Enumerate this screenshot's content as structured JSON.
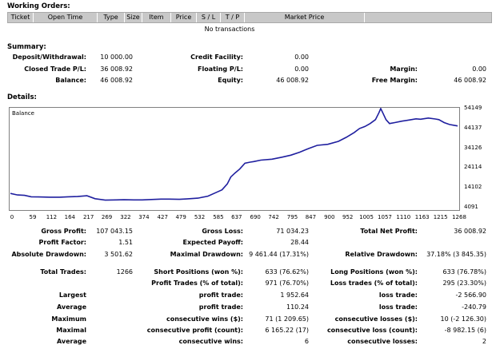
{
  "working_orders": {
    "title": "Working Orders:",
    "columns": [
      "Ticket",
      "Open Time",
      "Type",
      "Size",
      "Item",
      "Price",
      "S / L",
      "T / P",
      "Market Price"
    ],
    "empty_message": "No transactions"
  },
  "summary": {
    "title": "Summary:",
    "deposit_withdrawal_label": "Deposit/Withdrawal:",
    "deposit_withdrawal_value": "10 000.00",
    "credit_facility_label": "Credit Facility:",
    "credit_facility_value": "0.00",
    "closed_trade_pl_label": "Closed Trade P/L:",
    "closed_trade_pl_value": "36 008.92",
    "floating_pl_label": "Floating P/L:",
    "floating_pl_value": "0.00",
    "margin_label": "Margin:",
    "margin_value": "0.00",
    "balance_label": "Balance:",
    "balance_value": "46 008.92",
    "equity_label": "Equity:",
    "equity_value": "46 008.92",
    "free_margin_label": "Free Margin:",
    "free_margin_value": "46 008.92"
  },
  "details": {
    "title": "Details:",
    "gross_profit_label": "Gross Profit:",
    "gross_profit_value": "107 043.15",
    "gross_loss_label": "Gross Loss:",
    "gross_loss_value": "71 034.23",
    "total_net_profit_label": "Total Net Profit:",
    "total_net_profit_value": "36 008.92",
    "profit_factor_label": "Profit Factor:",
    "profit_factor_value": "1.51",
    "expected_payoff_label": "Expected Payoff:",
    "expected_payoff_value": "28.44",
    "absolute_drawdown_label": "Absolute Drawdown:",
    "absolute_drawdown_value": "3 501.62",
    "maximal_drawdown_label": "Maximal Drawdown:",
    "maximal_drawdown_value": "9 461.44 (17.31%)",
    "relative_drawdown_label": "Relative Drawdown:",
    "relative_drawdown_value": "37.18% (3 845.35)",
    "total_trades_label": "Total Trades:",
    "total_trades_value": "1266",
    "short_positions_label": "Short Positions (won %):",
    "short_positions_value": "633 (76.62%)",
    "long_positions_label": "Long Positions (won %):",
    "long_positions_value": "633 (76.78%)",
    "profit_trades_label": "Profit Trades (% of total):",
    "profit_trades_value": "971 (76.70%)",
    "loss_trades_label": "Loss trades (% of total):",
    "loss_trades_value": "295 (23.30%)",
    "largest_label": "Largest",
    "largest_profit_label": "profit trade:",
    "largest_profit_value": "1 952.64",
    "largest_loss_label": "loss trade:",
    "largest_loss_value": "-2 566.90",
    "average_label": "Average",
    "average_profit_label": "profit trade:",
    "average_profit_value": "110.24",
    "average_loss_label": "loss trade:",
    "average_loss_value": "-240.79",
    "maximum_label": "Maximum",
    "max_cons_wins_label": "consecutive wins ($):",
    "max_cons_wins_value": "71 (1 209.65)",
    "max_cons_losses_label": "consecutive losses ($):",
    "max_cons_losses_value": "10 (-2 126.30)",
    "maximal_label": "Maximal",
    "maximal_cons_profit_label": "consecutive profit (count):",
    "maximal_cons_profit_value": "6 165.22 (17)",
    "maximal_cons_loss_label": "consecutive loss (count):",
    "maximal_cons_loss_value": "-8 982.15 (6)",
    "average2_label": "Average",
    "avg_cons_wins_label": "consecutive wins:",
    "avg_cons_wins_value": "6",
    "avg_cons_losses_label": "consecutive losses:",
    "avg_cons_losses_value": "2"
  },
  "chart_data": {
    "type": "line",
    "title": "Balance",
    "line_color": "#1f1f9f",
    "x_ticks": [
      "0",
      "59",
      "112",
      "164",
      "217",
      "269",
      "322",
      "374",
      "427",
      "479",
      "532",
      "585",
      "637",
      "690",
      "742",
      "795",
      "847",
      "900",
      "952",
      "1005",
      "1057",
      "1110",
      "1163",
      "1215",
      "1268"
    ],
    "y_ticks": [
      "54149",
      "44137",
      "34126",
      "24114",
      "14102",
      "4091"
    ],
    "xlim": [
      0,
      1268
    ],
    "ylim": [
      4091,
      54149
    ],
    "grid": false,
    "series": [
      {
        "x": [
          0,
          20,
          40,
          59,
          80,
          112,
          140,
          164,
          190,
          217,
          240,
          269,
          300,
          322,
          350,
          374,
          400,
          427,
          450,
          479,
          500,
          532,
          560,
          585,
          600,
          615,
          625,
          637,
          650,
          665,
          680,
          690,
          710,
          742,
          770,
          795,
          820,
          847,
          870,
          900,
          930,
          952,
          975,
          990,
          1005,
          1020,
          1035,
          1045,
          1050,
          1057,
          1065,
          1075,
          1090,
          1110,
          1130,
          1150,
          1163,
          1185,
          1205,
          1215,
          1230,
          1245,
          1255,
          1268
        ],
        "y": [
          11700,
          10900,
          10700,
          10000,
          9900,
          9800,
          9800,
          10000,
          10100,
          10500,
          9000,
          8300,
          8400,
          8500,
          8400,
          8400,
          8600,
          8800,
          8800,
          8700,
          8900,
          9300,
          10300,
          12300,
          13500,
          16500,
          20000,
          22000,
          24000,
          27000,
          27500,
          27800,
          28500,
          29000,
          30000,
          31000,
          32500,
          34500,
          36000,
          36500,
          38000,
          40000,
          42500,
          44500,
          45500,
          47000,
          49000,
          52500,
          54600,
          52000,
          49000,
          47000,
          47500,
          48200,
          48800,
          49400,
          49200,
          49800,
          49300,
          49000,
          47500,
          46500,
          46200,
          45800
        ]
      }
    ]
  }
}
